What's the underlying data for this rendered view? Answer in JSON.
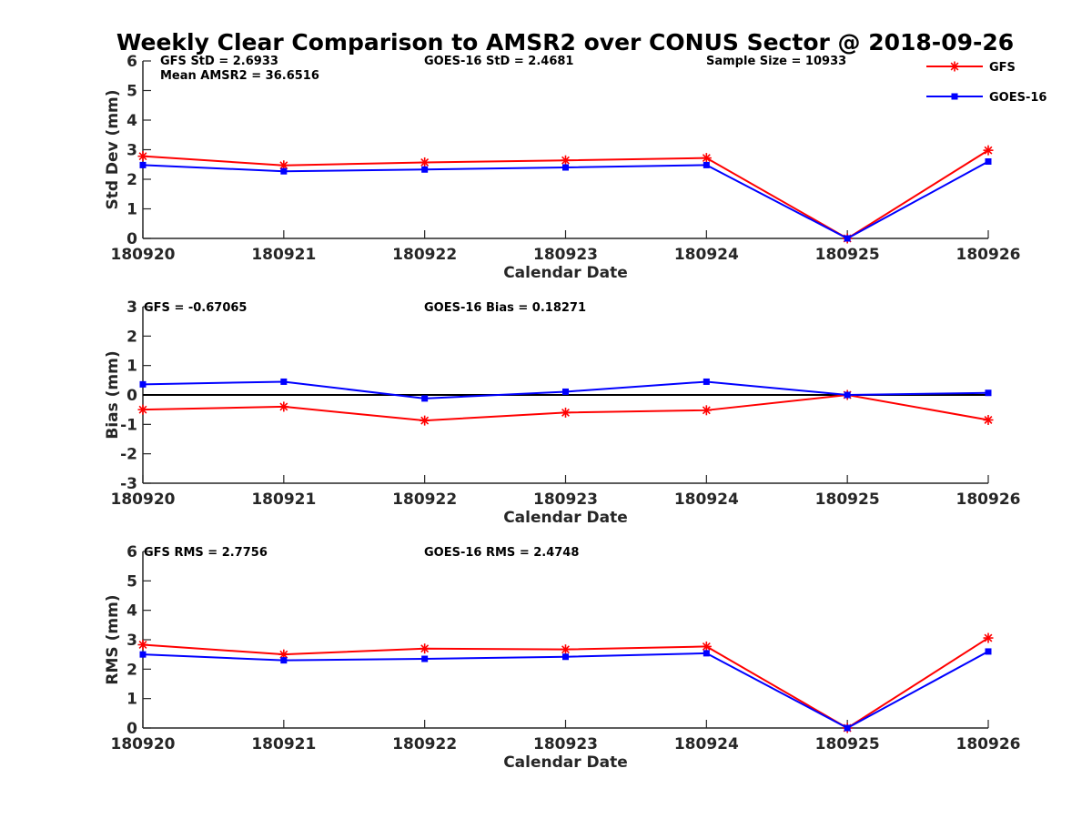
{
  "figure_title": "Weekly Clear Comparison to AMSR2 over CONUS Sector @ 2018-09-26",
  "colors": {
    "GFS": "#ff0000",
    "GOES-16": "#0000ff",
    "zero_line": "#000000",
    "axis": "#262626"
  },
  "legend": {
    "placement": "top-right",
    "entries": [
      {
        "name": "GFS",
        "marker": "asterisk"
      },
      {
        "name": "GOES-16",
        "marker": "square"
      }
    ]
  },
  "chart_data": [
    {
      "type": "line",
      "title": "",
      "xlabel": "Calendar Date",
      "ylabel": "Std Dev (mm)",
      "ylim": [
        0,
        6
      ],
      "yticks": [
        0,
        1,
        2,
        3,
        4,
        5,
        6
      ],
      "categories": [
        "180920",
        "180921",
        "180922",
        "180923",
        "180924",
        "180925",
        "180926"
      ],
      "series": [
        {
          "name": "GFS",
          "values": [
            2.78,
            2.47,
            2.57,
            2.64,
            2.72,
            0.0,
            2.98
          ]
        },
        {
          "name": "GOES-16",
          "values": [
            2.48,
            2.27,
            2.33,
            2.4,
            2.48,
            0.0,
            2.6
          ]
        }
      ],
      "annotations": [
        {
          "text": "GFS StD = 2.6933"
        },
        {
          "text": "Mean AMSR2 = 36.6516"
        },
        {
          "text": "GOES-16 StD = 2.4681"
        },
        {
          "text": "Sample Size = 10933"
        }
      ]
    },
    {
      "type": "line",
      "title": "",
      "xlabel": "Calendar Date",
      "ylabel": "Bias (mm)",
      "ylim": [
        -3,
        3
      ],
      "yticks": [
        -3,
        -2,
        -1,
        0,
        1,
        2,
        3
      ],
      "zero_line": true,
      "categories": [
        "180920",
        "180921",
        "180922",
        "180923",
        "180924",
        "180925",
        "180926"
      ],
      "series": [
        {
          "name": "GFS",
          "values": [
            -0.5,
            -0.4,
            -0.87,
            -0.6,
            -0.52,
            0.0,
            -0.85
          ]
        },
        {
          "name": "GOES-16",
          "values": [
            0.36,
            0.45,
            -0.12,
            0.11,
            0.45,
            0.0,
            0.07
          ]
        }
      ],
      "annotations": [
        {
          "text": "GFS = -0.67065"
        },
        {
          "text": "GOES-16 Bias  = 0.18271"
        }
      ]
    },
    {
      "type": "line",
      "title": "",
      "xlabel": "Calendar Date",
      "ylabel": "RMS (mm)",
      "ylim": [
        0,
        6
      ],
      "yticks": [
        0,
        1,
        2,
        3,
        4,
        5,
        6
      ],
      "categories": [
        "180920",
        "180921",
        "180922",
        "180923",
        "180924",
        "180925",
        "180926"
      ],
      "series": [
        {
          "name": "GFS",
          "values": [
            2.83,
            2.5,
            2.7,
            2.67,
            2.77,
            0.0,
            3.06
          ]
        },
        {
          "name": "GOES-16",
          "values": [
            2.5,
            2.3,
            2.35,
            2.42,
            2.54,
            0.0,
            2.6
          ]
        }
      ],
      "annotations": [
        {
          "text": "GFS RMS = 2.7756"
        },
        {
          "text": "GOES-16 RMS = 2.4748"
        }
      ]
    }
  ]
}
